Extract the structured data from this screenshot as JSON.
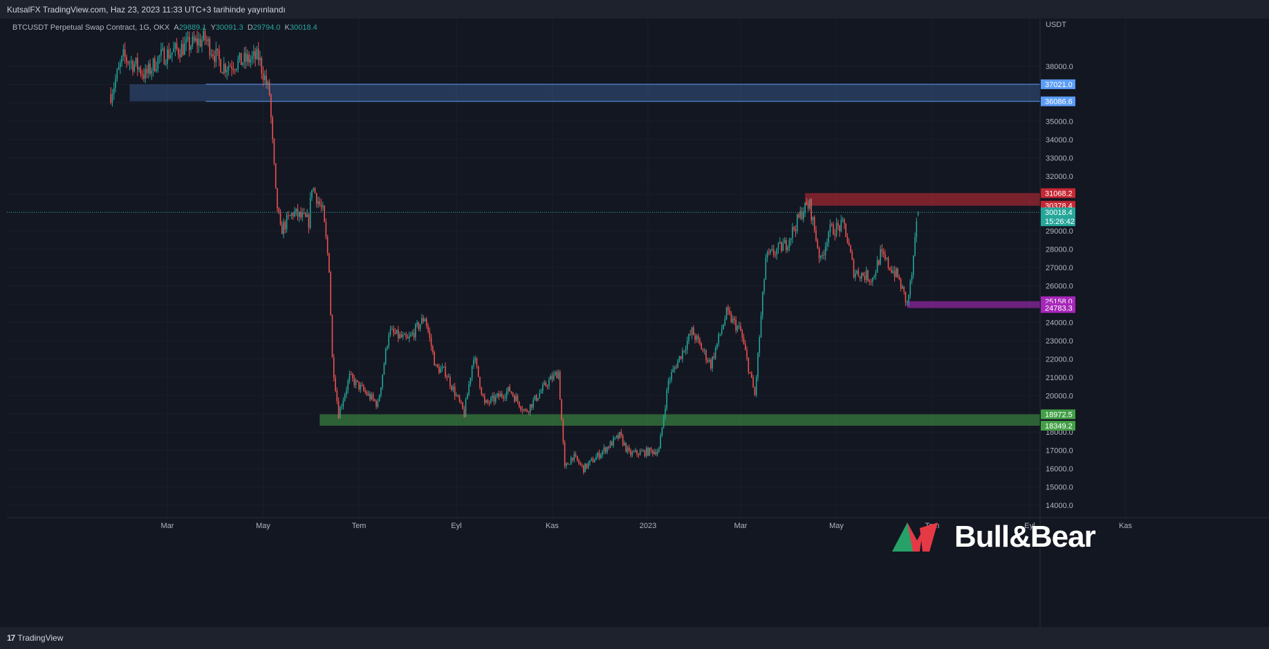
{
  "header": {
    "publish_info": "KutsalFX TradingView.com, Haz 23, 2023 11:33 UTC+3 tarihinde yayınlandı"
  },
  "legend": {
    "symbol": "BTCUSDT Perpetual Swap Contract, 1G, OKX",
    "a_label": "A",
    "a_value": "29889.1",
    "y_label": "Y",
    "y_value": "30091.3",
    "d_label": "D",
    "d_value": "29794.0",
    "k_label": "K",
    "k_value": "30018.4"
  },
  "footer": {
    "brand": "TradingView"
  },
  "watermark": {
    "text": "Bull&Bear"
  },
  "colors": {
    "background": "#131722",
    "grid": "#1b1f2b",
    "up": "#26a69a",
    "down": "#ef5350",
    "blue_zone": "#5b9cf6",
    "red_zone": "#b22833",
    "purple_zone": "#9c27b0",
    "green_zone": "#43a047"
  },
  "chart_data": {
    "type": "candlestick",
    "title": "",
    "currency": "USDT",
    "ylim": [
      13500,
      39500
    ],
    "y_ticks": [
      14000,
      15000,
      16000,
      17000,
      18000,
      19000,
      20000,
      21000,
      22000,
      23000,
      24000,
      25000,
      26000,
      27000,
      28000,
      29000,
      30000,
      31000,
      32000,
      33000,
      34000,
      35000,
      36000,
      37000,
      38000
    ],
    "x_ticks": [
      "Mar",
      "May",
      "Tem",
      "Eyl",
      "Kas",
      "2023",
      "Mar",
      "May",
      "Tem",
      "Eyl",
      "Kas"
    ],
    "current_price": "30018.4",
    "countdown": "15:26:42",
    "zones": [
      {
        "name": "supply-blue",
        "top": 37021.0,
        "bottom": 36086.6,
        "top_label": "37021.0",
        "bottom_label": "36086.6",
        "color": "#5b9cf6"
      },
      {
        "name": "supply-red",
        "top": 31068.2,
        "bottom": 30378.4,
        "top_label": "31068.2",
        "bottom_label": "30378.4",
        "color": "#b22833"
      },
      {
        "name": "demand-purple",
        "top": 25158.0,
        "bottom": 24783.3,
        "top_label": "25158.0",
        "bottom_label": "24783.3",
        "color": "#9c27b0"
      },
      {
        "name": "demand-green",
        "top": 18972.5,
        "bottom": 18349.2,
        "top_label": "18972.5",
        "bottom_label": "18349.2",
        "color": "#43a047"
      }
    ],
    "anchors": [
      {
        "date": "2022-01-24",
        "close": 36500
      },
      {
        "date": "2022-02-01",
        "close": 38500
      },
      {
        "date": "2022-02-10",
        "close": 38000
      },
      {
        "date": "2022-02-15",
        "close": 37500
      },
      {
        "date": "2022-02-24",
        "close": 38500
      },
      {
        "date": "2022-03-10",
        "close": 39000
      },
      {
        "date": "2022-03-25",
        "close": 39500
      },
      {
        "date": "2022-04-05",
        "close": 38000
      },
      {
        "date": "2022-04-28",
        "close": 38500
      },
      {
        "date": "2022-05-05",
        "close": 36500
      },
      {
        "date": "2022-05-09",
        "close": 31000
      },
      {
        "date": "2022-05-12",
        "close": 29000
      },
      {
        "date": "2022-05-20",
        "close": 30000
      },
      {
        "date": "2022-05-30",
        "close": 29500
      },
      {
        "date": "2022-06-01",
        "close": 31500
      },
      {
        "date": "2022-06-08",
        "close": 30000
      },
      {
        "date": "2022-06-12",
        "close": 27000
      },
      {
        "date": "2022-06-14",
        "close": 22000
      },
      {
        "date": "2022-06-18",
        "close": 19000
      },
      {
        "date": "2022-06-25",
        "close": 21000
      },
      {
        "date": "2022-07-13",
        "close": 19500
      },
      {
        "date": "2022-07-20",
        "close": 23500
      },
      {
        "date": "2022-08-01",
        "close": 23000
      },
      {
        "date": "2022-08-12",
        "close": 24300
      },
      {
        "date": "2022-08-19",
        "close": 21500
      },
      {
        "date": "2022-08-25",
        "close": 21300
      },
      {
        "date": "2022-09-06",
        "close": 19000
      },
      {
        "date": "2022-09-12",
        "close": 22200
      },
      {
        "date": "2022-09-19",
        "close": 19500
      },
      {
        "date": "2022-10-05",
        "close": 20300
      },
      {
        "date": "2022-10-15",
        "close": 19100
      },
      {
        "date": "2022-10-29",
        "close": 20700
      },
      {
        "date": "2022-11-05",
        "close": 21300
      },
      {
        "date": "2022-11-09",
        "close": 16000
      },
      {
        "date": "2022-11-14",
        "close": 16700
      },
      {
        "date": "2022-11-21",
        "close": 16000
      },
      {
        "date": "2022-12-14",
        "close": 17800
      },
      {
        "date": "2022-12-20",
        "close": 16800
      },
      {
        "date": "2023-01-08",
        "close": 17000
      },
      {
        "date": "2023-01-14",
        "close": 20800
      },
      {
        "date": "2023-01-29",
        "close": 23500
      },
      {
        "date": "2023-02-10",
        "close": 21700
      },
      {
        "date": "2023-02-20",
        "close": 24500
      },
      {
        "date": "2023-03-01",
        "close": 23500
      },
      {
        "date": "2023-03-10",
        "close": 20000
      },
      {
        "date": "2023-03-17",
        "close": 27500
      },
      {
        "date": "2023-03-30",
        "close": 28300
      },
      {
        "date": "2023-04-10",
        "close": 30200
      },
      {
        "date": "2023-04-14",
        "close": 30400
      },
      {
        "date": "2023-04-21",
        "close": 27300
      },
      {
        "date": "2023-04-26",
        "close": 29000
      },
      {
        "date": "2023-05-06",
        "close": 29300
      },
      {
        "date": "2023-05-12",
        "close": 26800
      },
      {
        "date": "2023-05-24",
        "close": 26400
      },
      {
        "date": "2023-05-29",
        "close": 27700
      },
      {
        "date": "2023-06-09",
        "close": 26500
      },
      {
        "date": "2023-06-15",
        "close": 25000
      },
      {
        "date": "2023-06-18",
        "close": 26600
      },
      {
        "date": "2023-06-20",
        "close": 28300
      },
      {
        "date": "2023-06-22",
        "close": 30018.4
      }
    ]
  }
}
